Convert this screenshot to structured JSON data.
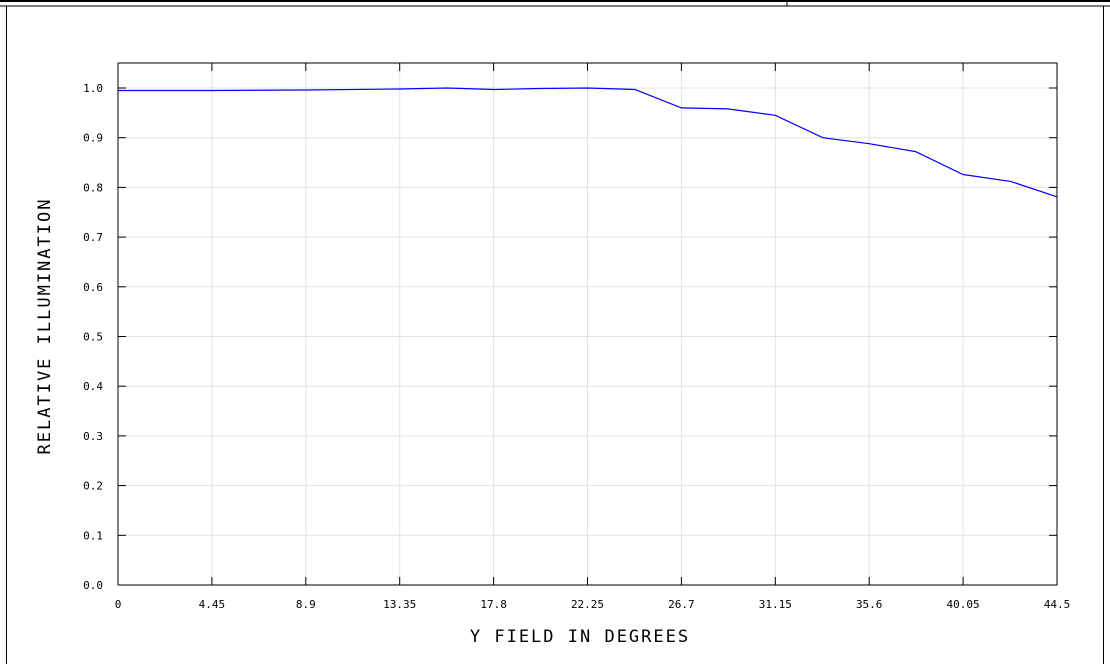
{
  "chart_data": {
    "type": "line",
    "xlabel": "Y FIELD IN DEGREES",
    "ylabel": "RELATIVE ILLUMINATION",
    "xlim": [
      0,
      44.5
    ],
    "ylim": [
      0,
      1.05
    ],
    "grid": true,
    "x_ticks": [
      "0",
      "4.45",
      "8.9",
      "13.35",
      "17.8",
      "22.25",
      "26.7",
      "31.15",
      "35.6",
      "40.05",
      "44.5"
    ],
    "y_ticks": [
      "0.0",
      "0.1",
      "0.2",
      "0.3",
      "0.4",
      "0.5",
      "0.6",
      "0.7",
      "0.8",
      "0.9",
      "1.0"
    ],
    "series": [
      {
        "color": "#0000ff",
        "x": [
          0,
          4.45,
          8.9,
          13.35,
          15.6,
          17.8,
          20.0,
          22.25,
          24.5,
          26.7,
          28.9,
          31.15,
          33.4,
          35.6,
          37.8,
          40.05,
          42.3,
          44.5
        ],
        "y": [
          0.995,
          0.995,
          0.996,
          0.998,
          1.0,
          0.997,
          0.999,
          1.0,
          0.997,
          0.96,
          0.958,
          0.945,
          0.9,
          0.888,
          0.872,
          0.826,
          0.812,
          0.781
        ]
      }
    ]
  }
}
